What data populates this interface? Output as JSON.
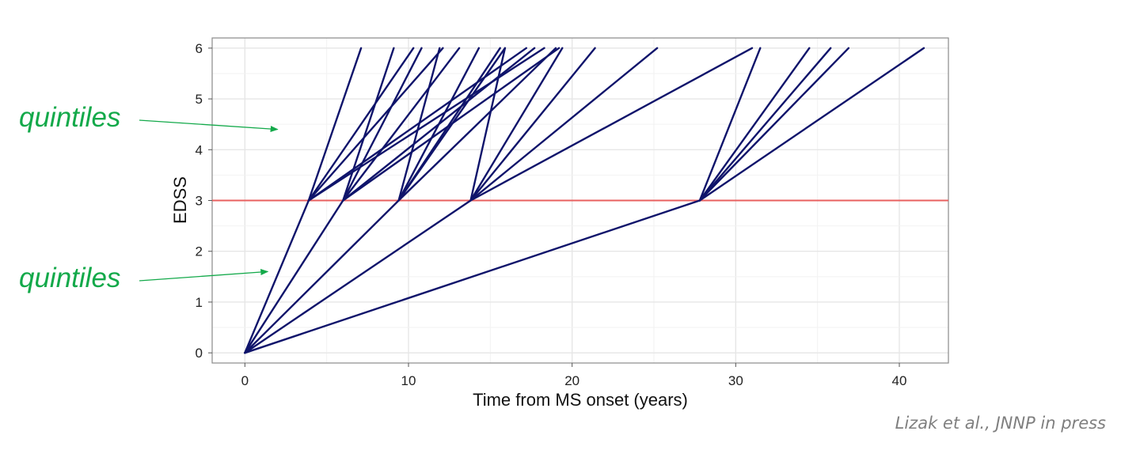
{
  "chart_data": {
    "type": "line",
    "title": "",
    "xlabel": "Time from MS onset (years)",
    "ylabel": "EDSS",
    "xlim": [
      -2,
      43
    ],
    "ylim": [
      -0.2,
      6.2
    ],
    "xticks": [
      0,
      10,
      20,
      30,
      40
    ],
    "yticks": [
      0,
      1,
      2,
      3,
      4,
      5,
      6
    ],
    "grid": true,
    "threshold": {
      "y": 3,
      "color": "#e8605f"
    },
    "line_color": "#0f146b",
    "series": [
      {
        "name": "onset to EDSS 3, q1",
        "x": [
          0,
          3.9
        ],
        "y": [
          0,
          3
        ]
      },
      {
        "name": "onset to EDSS 3, q2",
        "x": [
          0,
          6.0
        ],
        "y": [
          0,
          3
        ]
      },
      {
        "name": "onset to EDSS 3, q3",
        "x": [
          0,
          9.4
        ],
        "y": [
          0,
          3
        ]
      },
      {
        "name": "onset to EDSS 3, q4",
        "x": [
          0,
          13.8
        ],
        "y": [
          0,
          3
        ]
      },
      {
        "name": "onset to EDSS 3, q5",
        "x": [
          0,
          27.8
        ],
        "y": [
          0,
          3
        ]
      },
      {
        "name": "q1 to EDSS 6, q1",
        "x": [
          3.9,
          7.1
        ],
        "y": [
          3,
          6
        ]
      },
      {
        "name": "q1 to EDSS 6, q2",
        "x": [
          3.9,
          10.3
        ],
        "y": [
          3,
          6
        ]
      },
      {
        "name": "q1 to EDSS 6, q3",
        "x": [
          3.9,
          12.1
        ],
        "y": [
          3,
          6
        ]
      },
      {
        "name": "q1 to EDSS 6, q4",
        "x": [
          3.9,
          17.2
        ],
        "y": [
          3,
          6
        ]
      },
      {
        "name": "q1 to EDSS 6, q5",
        "x": [
          3.9,
          18.3
        ],
        "y": [
          3,
          6
        ]
      },
      {
        "name": "q2 to EDSS 6, q1",
        "x": [
          6.0,
          9.1
        ],
        "y": [
          3,
          6
        ]
      },
      {
        "name": "q2 to EDSS 6, q2",
        "x": [
          6.0,
          10.8
        ],
        "y": [
          3,
          6
        ]
      },
      {
        "name": "q2 to EDSS 6, q3",
        "x": [
          6.0,
          13.1
        ],
        "y": [
          3,
          6
        ]
      },
      {
        "name": "q2 to EDSS 6, q4",
        "x": [
          6.0,
          17.7
        ],
        "y": [
          3,
          6
        ]
      },
      {
        "name": "q2 to EDSS 6, q5",
        "x": [
          6.0,
          19.2
        ],
        "y": [
          3,
          6
        ]
      },
      {
        "name": "q3 to EDSS 6, q1",
        "x": [
          9.4,
          11.9
        ],
        "y": [
          3,
          6
        ]
      },
      {
        "name": "q3 to EDSS 6, q2",
        "x": [
          9.4,
          14.3
        ],
        "y": [
          3,
          6
        ]
      },
      {
        "name": "q3 to EDSS 6, q3",
        "x": [
          9.4,
          15.6
        ],
        "y": [
          3,
          6
        ]
      },
      {
        "name": "q3 to EDSS 6, q4",
        "x": [
          9.4,
          15.9
        ],
        "y": [
          3,
          6
        ]
      },
      {
        "name": "q3 to EDSS 6, q5",
        "x": [
          9.4,
          19.0
        ],
        "y": [
          3,
          6
        ]
      },
      {
        "name": "q4 to EDSS 6, q1",
        "x": [
          13.8,
          15.9
        ],
        "y": [
          3,
          6
        ]
      },
      {
        "name": "q4 to EDSS 6, q2",
        "x": [
          13.8,
          19.4
        ],
        "y": [
          3,
          6
        ]
      },
      {
        "name": "q4 to EDSS 6, q3",
        "x": [
          13.8,
          21.4
        ],
        "y": [
          3,
          6
        ]
      },
      {
        "name": "q4 to EDSS 6, q4",
        "x": [
          13.8,
          25.2
        ],
        "y": [
          3,
          6
        ]
      },
      {
        "name": "q4 to EDSS 6, q5",
        "x": [
          13.8,
          31.0
        ],
        "y": [
          3,
          6
        ]
      },
      {
        "name": "q5 to EDSS 6, q1",
        "x": [
          27.8,
          31.5
        ],
        "y": [
          3,
          6
        ]
      },
      {
        "name": "q5 to EDSS 6, q2",
        "x": [
          27.8,
          34.5
        ],
        "y": [
          3,
          6
        ]
      },
      {
        "name": "q5 to EDSS 6, q3",
        "x": [
          27.8,
          35.8
        ],
        "y": [
          3,
          6
        ]
      },
      {
        "name": "q5 to EDSS 6, q4",
        "x": [
          27.8,
          36.9
        ],
        "y": [
          3,
          6
        ]
      },
      {
        "name": "q5 to EDSS 6, q5",
        "x": [
          27.8,
          41.5
        ],
        "y": [
          3,
          6
        ]
      }
    ],
    "annotations": [
      {
        "text": "quintiles",
        "target": {
          "x": 2.0,
          "y": 4.4
        }
      },
      {
        "text": "quintiles",
        "target": {
          "x": 1.4,
          "y": 1.6
        }
      }
    ]
  },
  "annotation_color": "#13a94a",
  "citation": "Lizak et al., JNNP in press"
}
